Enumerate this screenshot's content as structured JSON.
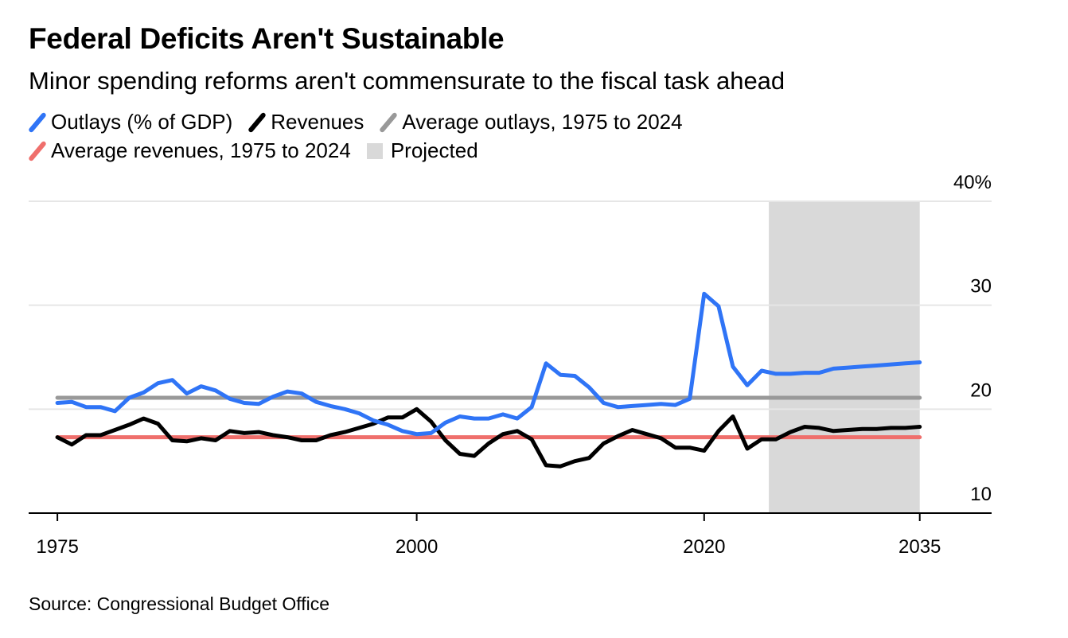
{
  "title": "Federal Deficits Aren't Sustainable",
  "subtitle": "Minor spending reforms aren't commensurate to the fiscal task ahead",
  "legend": [
    {
      "label": "Outlays (% of GDP)",
      "color": "#2f74f6",
      "kind": "line"
    },
    {
      "label": "Revenues",
      "color": "#000000",
      "kind": "line"
    },
    {
      "label": "Average outlays, 1975 to 2024",
      "color": "#999999",
      "kind": "line"
    },
    {
      "label": "Average revenues, 1975 to 2024",
      "color": "#ef6f6c",
      "kind": "line"
    },
    {
      "label": "Projected",
      "color": "#d9d9d9",
      "kind": "box"
    }
  ],
  "source": "Source: Congressional Budget Office",
  "chart_data": {
    "type": "line",
    "x_ticks": [
      "1975",
      "2000",
      "2020",
      "2035"
    ],
    "y_ticks": [
      "40%",
      "30",
      "20",
      "10"
    ],
    "xlim": [
      1973,
      2040
    ],
    "ylim": [
      10,
      40
    ],
    "grid": true,
    "projected_range": [
      2025,
      2035
    ],
    "x": [
      1975,
      1976,
      1977,
      1978,
      1979,
      1980,
      1981,
      1982,
      1983,
      1984,
      1985,
      1986,
      1987,
      1988,
      1989,
      1990,
      1991,
      1992,
      1993,
      1994,
      1995,
      1996,
      1997,
      1998,
      1999,
      2000,
      2001,
      2002,
      2003,
      2004,
      2005,
      2006,
      2007,
      2008,
      2009,
      2010,
      2011,
      2012,
      2013,
      2014,
      2015,
      2016,
      2017,
      2018,
      2019,
      2020,
      2021,
      2022,
      2023,
      2024,
      2025,
      2026,
      2027,
      2028,
      2029,
      2030,
      2031,
      2032,
      2033,
      2034,
      2035
    ],
    "series": [
      {
        "name": "Outlays (% of GDP)",
        "color": "#2f74f6",
        "values": [
          20.6,
          20.7,
          20.2,
          20.2,
          19.8,
          21.1,
          21.6,
          22.5,
          22.8,
          21.5,
          22.2,
          21.8,
          21.0,
          20.6,
          20.5,
          21.2,
          21.7,
          21.5,
          20.7,
          20.3,
          20.0,
          19.6,
          18.9,
          18.5,
          17.9,
          17.6,
          17.7,
          18.7,
          19.3,
          19.1,
          19.1,
          19.5,
          19.1,
          20.2,
          24.4,
          23.3,
          23.2,
          22.1,
          20.6,
          20.2,
          20.3,
          20.4,
          20.5,
          20.4,
          21.0,
          31.1,
          29.9,
          24.1,
          22.3,
          23.7,
          23.4,
          23.4,
          23.5,
          23.5,
          23.9,
          24.0,
          24.1,
          24.2,
          24.3,
          24.4,
          24.5
        ]
      },
      {
        "name": "Revenues",
        "color": "#000000",
        "values": [
          17.3,
          16.6,
          17.5,
          17.5,
          18.0,
          18.5,
          19.1,
          18.6,
          17.0,
          16.9,
          17.2,
          17.0,
          17.9,
          17.7,
          17.8,
          17.5,
          17.3,
          17.0,
          17.0,
          17.5,
          17.8,
          18.2,
          18.6,
          19.2,
          19.2,
          20.0,
          18.8,
          17.0,
          15.7,
          15.5,
          16.7,
          17.6,
          17.9,
          17.1,
          14.6,
          14.5,
          15.0,
          15.3,
          16.7,
          17.4,
          18.0,
          17.6,
          17.2,
          16.3,
          16.3,
          16.0,
          17.9,
          19.3,
          16.2,
          17.1,
          17.1,
          17.8,
          18.3,
          18.2,
          17.9,
          18.0,
          18.1,
          18.1,
          18.2,
          18.2,
          18.3
        ]
      },
      {
        "name": "Average outlays, 1975 to 2024",
        "color": "#999999",
        "values": [
          21.1,
          21.1,
          21.1,
          21.1,
          21.1,
          21.1,
          21.1,
          21.1,
          21.1,
          21.1,
          21.1,
          21.1,
          21.1,
          21.1,
          21.1,
          21.1,
          21.1,
          21.1,
          21.1,
          21.1,
          21.1,
          21.1,
          21.1,
          21.1,
          21.1,
          21.1,
          21.1,
          21.1,
          21.1,
          21.1,
          21.1,
          21.1,
          21.1,
          21.1,
          21.1,
          21.1,
          21.1,
          21.1,
          21.1,
          21.1,
          21.1,
          21.1,
          21.1,
          21.1,
          21.1,
          21.1,
          21.1,
          21.1,
          21.1,
          21.1,
          21.1,
          21.1,
          21.1,
          21.1,
          21.1,
          21.1,
          21.1,
          21.1,
          21.1,
          21.1,
          21.1
        ]
      },
      {
        "name": "Average revenues, 1975 to 2024",
        "color": "#ef6f6c",
        "values": [
          17.3,
          17.3,
          17.3,
          17.3,
          17.3,
          17.3,
          17.3,
          17.3,
          17.3,
          17.3,
          17.3,
          17.3,
          17.3,
          17.3,
          17.3,
          17.3,
          17.3,
          17.3,
          17.3,
          17.3,
          17.3,
          17.3,
          17.3,
          17.3,
          17.3,
          17.3,
          17.3,
          17.3,
          17.3,
          17.3,
          17.3,
          17.3,
          17.3,
          17.3,
          17.3,
          17.3,
          17.3,
          17.3,
          17.3,
          17.3,
          17.3,
          17.3,
          17.3,
          17.3,
          17.3,
          17.3,
          17.3,
          17.3,
          17.3,
          17.3,
          17.3,
          17.3,
          17.3,
          17.3,
          17.3,
          17.3,
          17.3,
          17.3,
          17.3,
          17.3,
          17.3
        ]
      }
    ]
  }
}
